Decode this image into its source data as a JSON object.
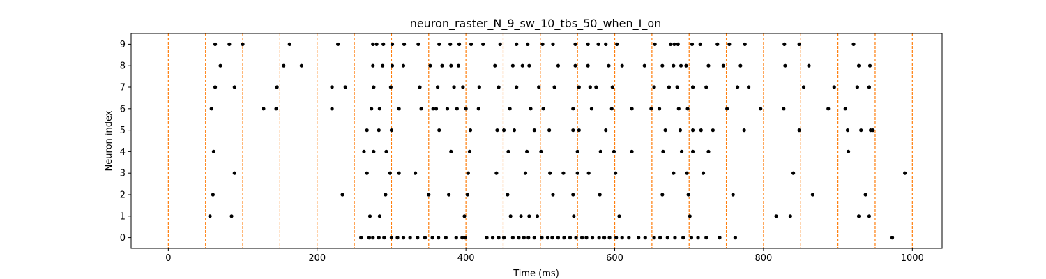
{
  "chart_data": {
    "type": "scatter",
    "title": "neuron_raster_N_9_sw_10_tbs_50_when_I_on",
    "xlabel": "Time (ms)",
    "ylabel": "Neuron index",
    "xlim": [
      -50,
      1040
    ],
    "ylim": [
      -0.5,
      9.5
    ],
    "xticks": [
      0,
      200,
      400,
      600,
      800,
      1000
    ],
    "yticks": [
      0,
      1,
      2,
      3,
      4,
      5,
      6,
      7,
      8,
      9
    ],
    "grid": false,
    "legend": "none",
    "marker_color": "#000000",
    "vline_color": "#ff7f0e",
    "vlines": [
      0,
      50,
      100,
      150,
      200,
      250,
      300,
      350,
      400,
      450,
      500,
      550,
      600,
      650,
      700,
      750,
      800,
      850,
      900,
      950,
      1000
    ],
    "spikes": [
      {
        "neuron": 0,
        "times": [
          259,
          270,
          275,
          283,
          290,
          300,
          308,
          316,
          325,
          335,
          345,
          355,
          363,
          373,
          387,
          395,
          399,
          428,
          436,
          444,
          451,
          463,
          471,
          478,
          484,
          492,
          502,
          510,
          516,
          524,
          532,
          540,
          548,
          556,
          562,
          570,
          579,
          586,
          593,
          602,
          610,
          619,
          632,
          641,
          653,
          661,
          671,
          681,
          692,
          703,
          712,
          723,
          741,
          762,
          973
        ]
      },
      {
        "neuron": 1,
        "times": [
          56,
          85,
          271,
          284,
          398,
          460,
          474,
          485,
          496,
          545,
          606,
          701,
          817,
          836,
          928,
          942
        ]
      },
      {
        "neuron": 2,
        "times": [
          60,
          234,
          292,
          350,
          377,
          402,
          456,
          517,
          544,
          580,
          664,
          699,
          759,
          866,
          937
        ]
      },
      {
        "neuron": 3,
        "times": [
          89,
          267,
          298,
          310,
          332,
          403,
          441,
          480,
          513,
          531,
          550,
          565,
          601,
          679,
          697,
          719,
          840,
          990
        ]
      },
      {
        "neuron": 4,
        "times": [
          61,
          263,
          276,
          293,
          380,
          405,
          457,
          482,
          501,
          550,
          581,
          599,
          623,
          665,
          690,
          705,
          726,
          914
        ]
      },
      {
        "neuron": 5,
        "times": [
          267,
          283,
          300,
          364,
          406,
          442,
          451,
          465,
          492,
          512,
          544,
          552,
          588,
          668,
          688,
          705,
          716,
          732,
          774,
          848,
          913,
          931,
          944,
          947
        ]
      },
      {
        "neuron": 6,
        "times": [
          58,
          128,
          145,
          220,
          273,
          284,
          310,
          340,
          356,
          360,
          375,
          388,
          400,
          417,
          459,
          487,
          504,
          544,
          569,
          596,
          623,
          649,
          660,
          686,
          698,
          751,
          796,
          827,
          887,
          910
        ]
      },
      {
        "neuron": 7,
        "times": [
          63,
          89,
          146,
          220,
          238,
          276,
          299,
          338,
          362,
          384,
          396,
          418,
          444,
          468,
          498,
          519,
          552,
          567,
          575,
          597,
          653,
          673,
          684,
          705,
          723,
          765,
          780,
          854,
          895,
          926,
          942
        ]
      },
      {
        "neuron": 8,
        "times": [
          70,
          155,
          179,
          275,
          288,
          301,
          316,
          352,
          368,
          380,
          390,
          439,
          463,
          476,
          485,
          524,
          547,
          564,
          592,
          610,
          640,
          664,
          679,
          689,
          696,
          726,
          746,
          769,
          829,
          861,
          928,
          943
        ]
      },
      {
        "neuron": 9,
        "times": [
          63,
          82,
          100,
          163,
          228,
          275,
          280,
          289,
          301,
          317,
          336,
          364,
          379,
          391,
          407,
          423,
          446,
          468,
          483,
          503,
          517,
          547,
          564,
          578,
          588,
          603,
          654,
          675,
          680,
          685,
          704,
          715,
          738,
          754,
          775,
          828,
          848,
          921
        ]
      }
    ]
  }
}
